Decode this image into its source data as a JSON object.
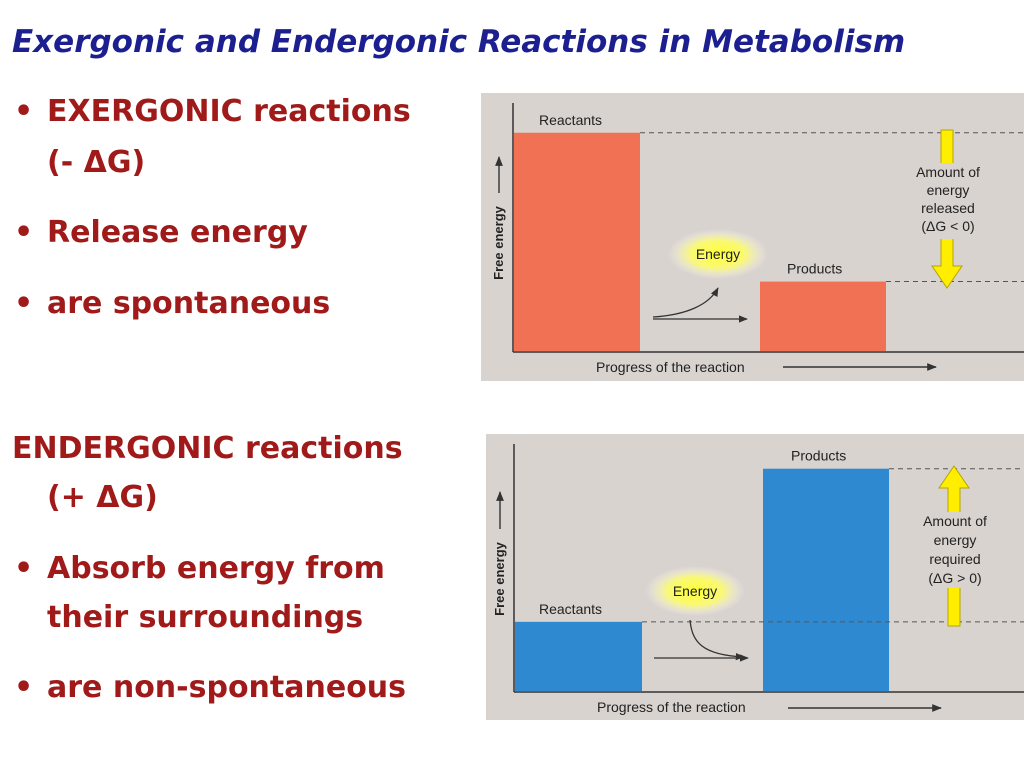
{
  "title": "Exergonic and Endergonic Reactions in Metabolism",
  "exergonic": {
    "heading": "EXERGONIC reactions",
    "delta": "(- ΔG)",
    "bullets": [
      "Release energy",
      "are spontaneous"
    ]
  },
  "endergonic": {
    "heading": "ENDERGONIC reactions",
    "delta": "(+ ΔG)",
    "bullets": [
      "Absorb energy from",
      "their surroundings",
      "are non-spontaneous"
    ]
  },
  "diagram_exergonic": {
    "y_axis": "Free energy",
    "x_axis": "Progress of the reaction",
    "reactants_label": "Reactants",
    "products_label": "Products",
    "energy_label": "Energy",
    "note": [
      "Amount of",
      "energy",
      "released",
      "(ΔG < 0)"
    ],
    "bar_color": "#f07153",
    "arrow_color": "#ffee00",
    "reactants_level": 0.88,
    "products_level": 0.28
  },
  "diagram_endergonic": {
    "y_axis": "Free energy",
    "x_axis": "Progress of the reaction",
    "reactants_label": "Reactants",
    "products_label": "Products",
    "energy_label": "Energy",
    "note": [
      "Amount of",
      "energy",
      "required",
      "(ΔG > 0)"
    ],
    "bar_color": "#2f89d0",
    "arrow_color": "#ffee00",
    "reactants_level": 0.28,
    "products_level": 0.9
  }
}
